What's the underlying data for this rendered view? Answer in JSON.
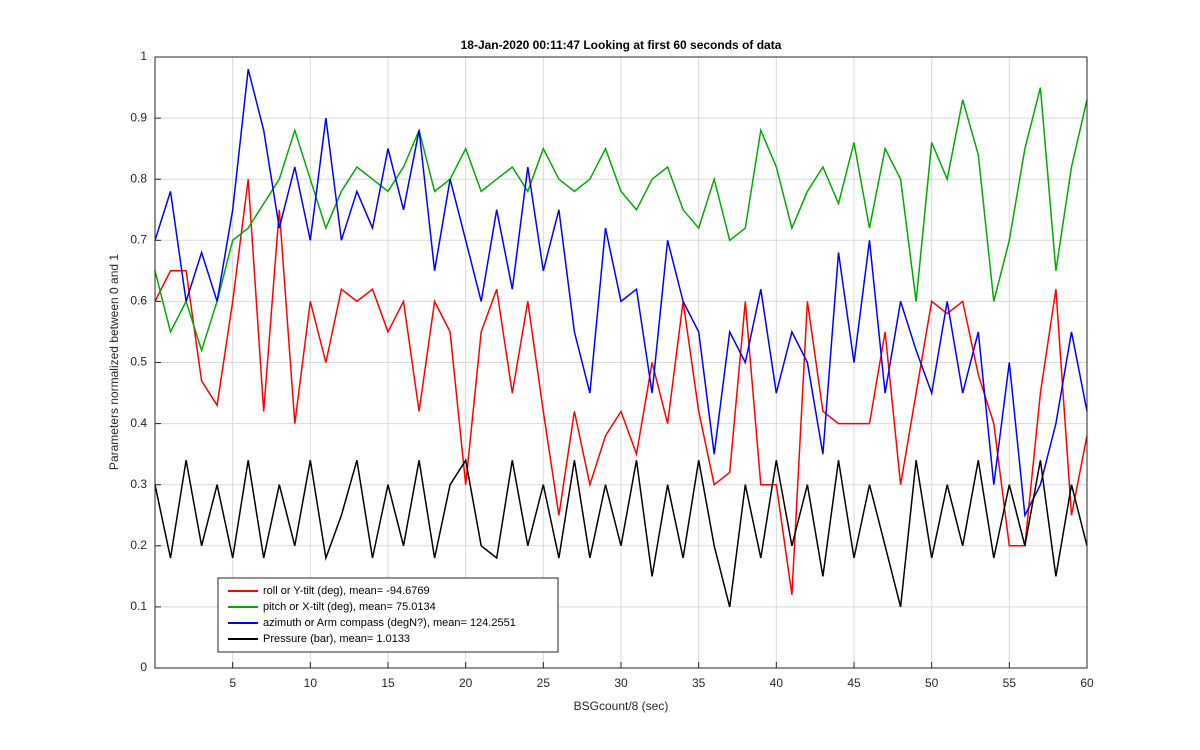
{
  "chart_data": {
    "type": "line",
    "title": "18-Jan-2020 00:11:47 Looking at first 60 seconds of data",
    "xlabel": "BSGcount/8 (sec)",
    "ylabel": "Parameters normalized between 0 and 1",
    "x": [
      0,
      1,
      2,
      3,
      4,
      5,
      6,
      7,
      8,
      9,
      10,
      11,
      12,
      13,
      14,
      15,
      16,
      17,
      18,
      19,
      20,
      21,
      22,
      23,
      24,
      25,
      26,
      27,
      28,
      29,
      30,
      31,
      32,
      33,
      34,
      35,
      36,
      37,
      38,
      39,
      40,
      41,
      42,
      43,
      44,
      45,
      46,
      47,
      48,
      49,
      50,
      51,
      52,
      53,
      54,
      55,
      56,
      57,
      58,
      59,
      60
    ],
    "xlim": [
      0,
      60
    ],
    "xticks": [
      5,
      10,
      15,
      20,
      25,
      30,
      35,
      40,
      45,
      50,
      55,
      60
    ],
    "ylim": [
      0,
      1
    ],
    "yticks": [
      0,
      0.1,
      0.2,
      0.3,
      0.4,
      0.5,
      0.6,
      0.7,
      0.8,
      0.9,
      1
    ],
    "grid": true,
    "legend": "lower left",
    "series": [
      {
        "name": "roll or Y-tilt (deg), mean= -94.6769",
        "color": "#ff0000",
        "values": [
          0.6,
          0.65,
          0.65,
          0.47,
          0.43,
          0.6,
          0.8,
          0.42,
          0.75,
          0.4,
          0.6,
          0.5,
          0.62,
          0.6,
          0.62,
          0.55,
          0.6,
          0.42,
          0.6,
          0.55,
          0.3,
          0.55,
          0.62,
          0.45,
          0.6,
          0.42,
          0.25,
          0.42,
          0.3,
          0.38,
          0.42,
          0.35,
          0.5,
          0.4,
          0.6,
          0.42,
          0.3,
          0.32,
          0.6,
          0.3,
          0.3,
          0.12,
          0.6,
          0.42,
          0.4,
          0.4,
          0.4,
          0.55,
          0.3,
          0.45,
          0.6,
          0.58,
          0.6,
          0.48,
          0.4,
          0.2,
          0.2,
          0.45,
          0.62,
          0.25,
          0.38
        ]
      },
      {
        "name": "pitch or X-tilt (deg), mean= 75.0134",
        "color": "#00aa00",
        "values": [
          0.65,
          0.55,
          0.6,
          0.52,
          0.6,
          0.7,
          0.72,
          0.76,
          0.8,
          0.88,
          0.8,
          0.72,
          0.78,
          0.82,
          0.8,
          0.78,
          0.82,
          0.88,
          0.78,
          0.8,
          0.85,
          0.78,
          0.8,
          0.82,
          0.78,
          0.85,
          0.8,
          0.78,
          0.8,
          0.85,
          0.78,
          0.75,
          0.8,
          0.82,
          0.75,
          0.72,
          0.8,
          0.7,
          0.72,
          0.88,
          0.82,
          0.72,
          0.78,
          0.82,
          0.76,
          0.86,
          0.72,
          0.85,
          0.8,
          0.6,
          0.86,
          0.8,
          0.93,
          0.84,
          0.6,
          0.7,
          0.85,
          0.95,
          0.65,
          0.82,
          0.93
        ]
      },
      {
        "name": "azimuth or Arm compass (degN?), mean= 124.2551",
        "color": "#0000ff",
        "values": [
          0.7,
          0.78,
          0.6,
          0.68,
          0.6,
          0.75,
          0.98,
          0.88,
          0.72,
          0.82,
          0.7,
          0.9,
          0.7,
          0.78,
          0.72,
          0.85,
          0.75,
          0.88,
          0.65,
          0.8,
          0.7,
          0.6,
          0.75,
          0.62,
          0.82,
          0.65,
          0.75,
          0.55,
          0.45,
          0.72,
          0.6,
          0.62,
          0.45,
          0.7,
          0.6,
          0.55,
          0.35,
          0.55,
          0.5,
          0.62,
          0.45,
          0.55,
          0.5,
          0.35,
          0.68,
          0.5,
          0.7,
          0.45,
          0.6,
          0.52,
          0.45,
          0.6,
          0.45,
          0.55,
          0.3,
          0.5,
          0.25,
          0.3,
          0.4,
          0.55,
          0.42
        ]
      },
      {
        "name": "Pressure (bar), mean= 1.0133",
        "color": "#000000",
        "values": [
          0.3,
          0.18,
          0.34,
          0.2,
          0.3,
          0.18,
          0.34,
          0.18,
          0.3,
          0.2,
          0.34,
          0.18,
          0.25,
          0.34,
          0.18,
          0.3,
          0.2,
          0.34,
          0.18,
          0.3,
          0.34,
          0.2,
          0.18,
          0.34,
          0.2,
          0.3,
          0.18,
          0.34,
          0.18,
          0.3,
          0.2,
          0.34,
          0.15,
          0.3,
          0.18,
          0.34,
          0.2,
          0.1,
          0.3,
          0.18,
          0.34,
          0.2,
          0.3,
          0.15,
          0.34,
          0.18,
          0.3,
          0.2,
          0.1,
          0.34,
          0.18,
          0.3,
          0.2,
          0.34,
          0.18,
          0.3,
          0.2,
          0.34,
          0.15,
          0.3,
          0.2
        ]
      }
    ]
  }
}
